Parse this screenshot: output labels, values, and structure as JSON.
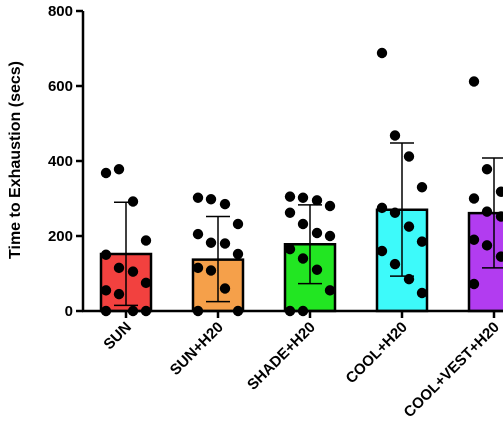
{
  "chart_data": {
    "type": "bar",
    "title": "",
    "xlabel": "",
    "ylabel": "Time to  Exhaustion  (secs)",
    "ylim": [
      0,
      800
    ],
    "yticks": [
      0,
      200,
      400,
      600,
      800
    ],
    "grid": false,
    "categories": [
      "SUN",
      "SUN+H20",
      "SHADE+H20",
      "COOL+H20",
      "COOL+VEST+H20"
    ],
    "colors": [
      "#f2413f",
      "#f5a04a",
      "#22e622",
      "#3dfafa",
      "#b23cf0"
    ],
    "values": [
      152,
      137,
      178,
      270,
      261
    ],
    "error_upper": [
      290,
      252,
      283,
      448,
      408
    ],
    "error_lower": [
      15,
      25,
      73,
      93,
      115
    ],
    "points": [
      [
        368,
        378,
        292,
        188,
        150,
        115,
        105,
        75,
        55,
        45,
        0,
        0,
        0
      ],
      [
        302,
        298,
        285,
        232,
        205,
        182,
        180,
        152,
        115,
        108,
        60,
        0,
        0
      ],
      [
        305,
        302,
        295,
        280,
        262,
        232,
        208,
        200,
        165,
        140,
        110,
        55,
        0,
        0
      ],
      [
        688,
        468,
        412,
        330,
        275,
        262,
        225,
        185,
        160,
        125,
        85,
        48
      ],
      [
        612,
        378,
        318,
        312,
        300,
        265,
        252,
        208,
        190,
        175,
        145,
        85,
        72
      ]
    ]
  }
}
